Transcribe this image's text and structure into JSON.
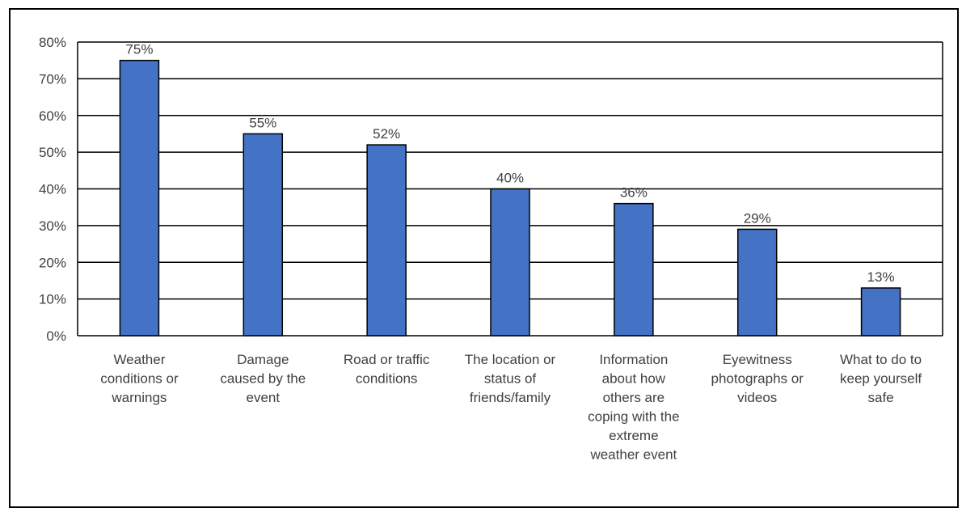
{
  "chart_data": {
    "type": "bar",
    "title": "",
    "xlabel": "",
    "ylabel": "",
    "ylim": [
      0,
      80
    ],
    "y_tick_step": 10,
    "y_tick_format": "percent",
    "grid": true,
    "bar_color": "#4472C4",
    "categories": [
      "Weather conditions or warnings",
      "Damage caused by the event",
      "Road or traffic conditions",
      "The location or status of friends/family",
      "Information about how others are coping with the extreme weather event",
      "Eyewitness photographs or videos",
      "What to do to keep yourself safe"
    ],
    "category_lines": [
      [
        "Weather",
        "conditions or",
        "warnings"
      ],
      [
        "Damage",
        "caused by the",
        "event"
      ],
      [
        "Road or traffic",
        "conditions"
      ],
      [
        "The location or",
        "status of",
        "friends/family"
      ],
      [
        "Information",
        "about how",
        "others are",
        "coping with the",
        "extreme",
        "weather event"
      ],
      [
        "Eyewitness",
        "photographs or",
        "videos"
      ],
      [
        "What to do to",
        "keep yourself",
        "safe"
      ]
    ],
    "values": [
      75,
      55,
      52,
      40,
      36,
      29,
      13
    ],
    "data_labels": [
      "75%",
      "55%",
      "52%",
      "40%",
      "36%",
      "29%",
      "13%"
    ]
  }
}
